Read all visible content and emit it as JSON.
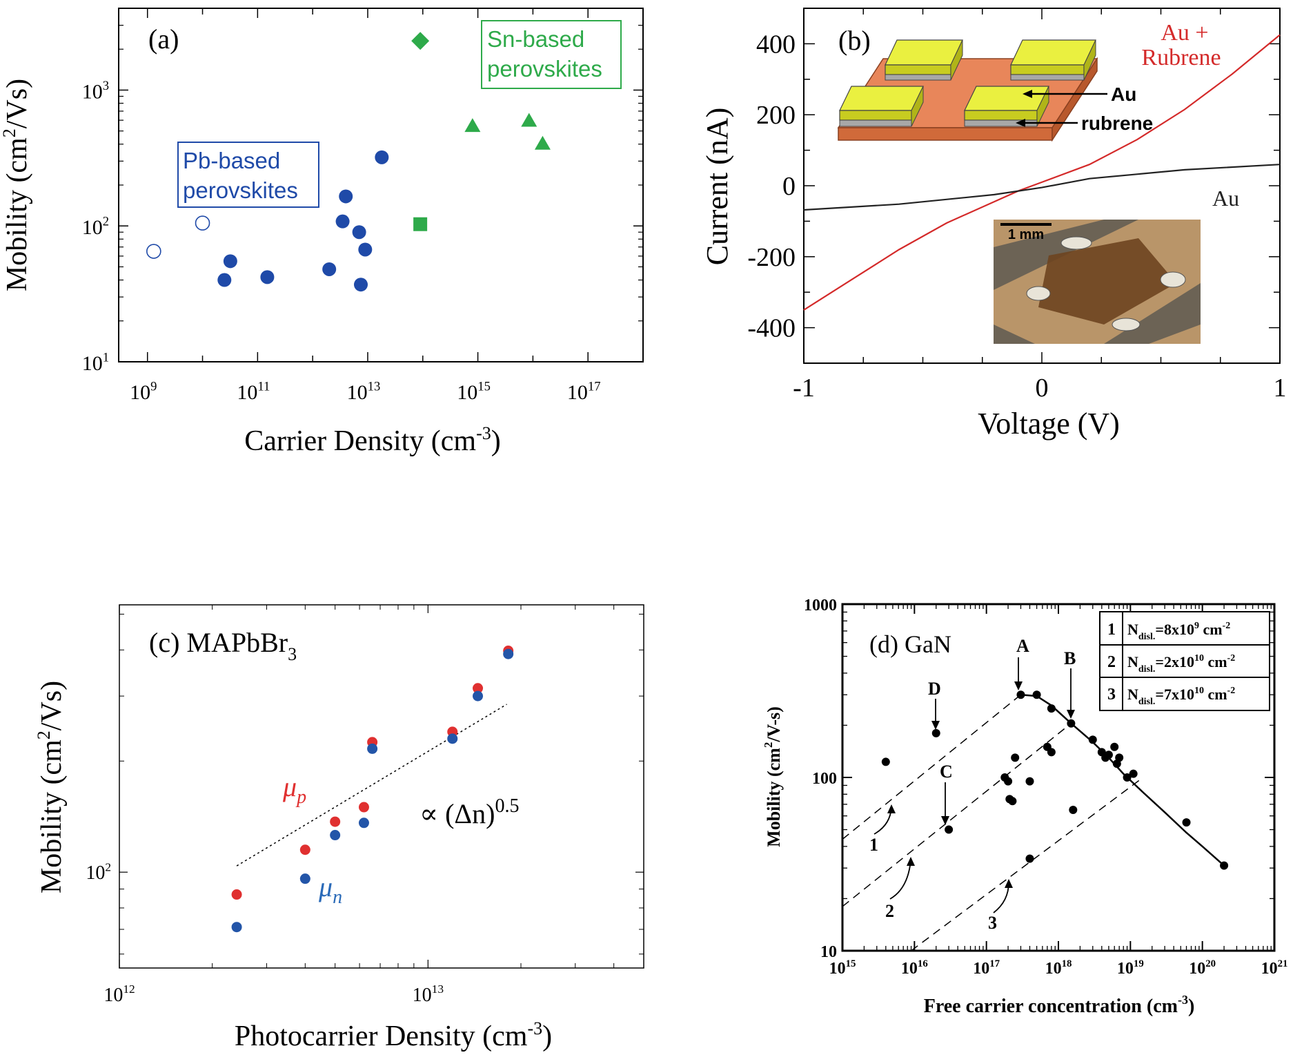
{
  "chart_data": [
    {
      "panel": "(a)",
      "type": "scatter",
      "title": "",
      "xlabel": "Carrier Density (cm",
      "xlabel_sup": "-3",
      "xlabel_end": ")",
      "ylabel": "Mobility (cm",
      "ylabel_sup": "2",
      "ylabel_end": "/Vs)",
      "xscale": "log",
      "yscale": "log",
      "xlim": [
        300000000.0,
        1e+18
      ],
      "ylim": [
        10,
        4000
      ],
      "xticks": [
        {
          "b": "10",
          "e": "9",
          "v": 1000000000.0
        },
        {
          "b": "10",
          "e": "11",
          "v": 100000000000.0
        },
        {
          "b": "10",
          "e": "13",
          "v": 10000000000000.0
        },
        {
          "b": "10",
          "e": "15",
          "v": 1000000000000000.0
        },
        {
          "b": "10",
          "e": "17",
          "v": 1e+17
        }
      ],
      "yticks": [
        {
          "b": "10",
          "e": "1",
          "v": 10
        },
        {
          "b": "10",
          "e": "2",
          "v": 100
        },
        {
          "b": "10",
          "e": "3",
          "v": 1000
        }
      ],
      "annotations": {
        "pb_line1": "Pb-based",
        "pb_line2": "perovskites",
        "sn_line1": "Sn-based",
        "sn_line2": "perovskites"
      },
      "series": [
        {
          "name": "Pb-based (open)",
          "color": "#1f4aa8",
          "marker": "open-circle",
          "points": [
            [
              1300000000.0,
              65
            ],
            [
              10000000000.0,
              105
            ]
          ]
        },
        {
          "name": "Pb-based (filled)",
          "color": "#1f4aa8",
          "marker": "circle",
          "points": [
            [
              25000000000.0,
              40
            ],
            [
              32000000000.0,
              55
            ],
            [
              150000000000.0,
              42
            ],
            [
              2000000000000.0,
              48
            ],
            [
              3500000000000.0,
              108
            ],
            [
              4000000000000.0,
              165
            ],
            [
              7000000000000.0,
              90
            ],
            [
              7500000000000.0,
              37
            ],
            [
              9000000000000.0,
              67
            ],
            [
              18000000000000.0,
              320
            ]
          ]
        },
        {
          "name": "Sn-based diamond",
          "color": "#2eaa4a",
          "marker": "diamond",
          "points": [
            [
              90000000000000.0,
              2300
            ]
          ]
        },
        {
          "name": "Sn-based square",
          "color": "#2eaa4a",
          "marker": "square",
          "points": [
            [
              90000000000000.0,
              103
            ]
          ]
        },
        {
          "name": "Sn-based triangle",
          "color": "#2eaa4a",
          "marker": "triangle",
          "points": [
            [
              800000000000000.0,
              540
            ],
            [
              8500000000000000.0,
              590
            ],
            [
              1.5e+16,
              400
            ]
          ]
        }
      ]
    },
    {
      "panel": "(b)",
      "type": "line",
      "xlabel": "Voltage (V)",
      "ylabel": "Current (nA)",
      "xlim": [
        -1,
        1
      ],
      "ylim": [
        -500,
        500
      ],
      "xticks": [
        {
          "l": "-1",
          "v": -1
        },
        {
          "l": "0",
          "v": 0
        },
        {
          "l": "1",
          "v": 1
        }
      ],
      "yticks": [
        {
          "l": "400",
          "v": 400
        },
        {
          "l": "200",
          "v": 200
        },
        {
          "l": "0",
          "v": 0
        },
        {
          "l": "-200",
          "v": -200
        },
        {
          "l": "-400",
          "v": -400
        }
      ],
      "legend": {
        "au_rubrene_1": "Au +",
        "au_rubrene_2": "Rubrene",
        "au": "Au"
      },
      "inset_labels": {
        "au": "Au",
        "rubrene": "rubrene",
        "scale": "1 mm"
      },
      "series": [
        {
          "name": "Au + Rubrene",
          "color": "#d42a2a",
          "x": [
            -1,
            -0.8,
            -0.6,
            -0.4,
            -0.2,
            -0.1,
            0,
            0.2,
            0.4,
            0.6,
            0.8,
            1
          ],
          "y": [
            -350,
            -265,
            -180,
            -105,
            -45,
            -15,
            10,
            60,
            130,
            215,
            315,
            425
          ]
        },
        {
          "name": "Au",
          "color": "#222222",
          "x": [
            -1,
            -0.6,
            -0.2,
            0,
            0.2,
            0.6,
            1
          ],
          "y": [
            -68,
            -52,
            -25,
            -5,
            20,
            45,
            60
          ]
        }
      ]
    },
    {
      "panel": "(c)",
      "type": "scatter",
      "title_main": "(c) MAPbBr",
      "title_sub": "3",
      "xlabel": "Photocarrier Density (cm",
      "xlabel_sup": "-3",
      "xlabel_end": ")",
      "ylabel": "Mobility (cm",
      "ylabel_sup": "2",
      "ylabel_end": "/Vs)",
      "xscale": "log",
      "yscale": "log",
      "xlim": [
        1000000000000.0,
        50000000000000.0
      ],
      "ylim": [
        55,
        530
      ],
      "xticks": [
        {
          "b": "10",
          "e": "12",
          "v": 1000000000000.0
        },
        {
          "b": "10",
          "e": "13",
          "v": 10000000000000.0
        }
      ],
      "yticks": [
        {
          "b": "10",
          "e": "2",
          "v": 100
        }
      ],
      "labels": {
        "mu_p": "μ",
        "mu_p_sub": "p",
        "mu_n": "μ",
        "mu_n_sub": "n",
        "fit": "∝ (Δn)",
        "fit_sup": "0.5"
      },
      "fit_line": {
        "x": [
          2400000000000.0,
          18000000000000.0
        ],
        "y": [
          104,
          285
        ]
      },
      "series": [
        {
          "name": "μp",
          "color": "#e03030",
          "points": [
            [
              2400000000000.0,
              87
            ],
            [
              4000000000000.0,
              115
            ],
            [
              5000000000000.0,
              137
            ],
            [
              6200000000000.0,
              150
            ],
            [
              6600000000000.0,
              225
            ],
            [
              12000000000000.0,
              240
            ],
            [
              14500000000000.0,
              315
            ],
            [
              18200000000000.0,
              398
            ]
          ]
        },
        {
          "name": "μn",
          "color": "#2355a8",
          "points": [
            [
              2400000000000.0,
              71
            ],
            [
              4000000000000.0,
              96
            ],
            [
              5000000000000.0,
              126
            ],
            [
              6200000000000.0,
              136
            ],
            [
              6600000000000.0,
              216
            ],
            [
              12000000000000.0,
              230
            ],
            [
              14500000000000.0,
              300
            ],
            [
              18200000000000.0,
              390
            ]
          ]
        }
      ]
    },
    {
      "panel": "(d)",
      "type": "scatter",
      "title": "(d) GaN",
      "xlabel": "Free carrier concentration (cm",
      "xlabel_sup": "-3",
      "xlabel_end": ")",
      "ylabel": "Mobility (cm",
      "ylabel_sup": "2",
      "ylabel_end": "/V-s)",
      "xscale": "log",
      "yscale": "log",
      "xlim": [
        1000000000000000.0,
        1e+21
      ],
      "ylim": [
        10,
        1000
      ],
      "xticks": [
        {
          "b": "10",
          "e": "15",
          "v": 1000000000000000.0
        },
        {
          "b": "10",
          "e": "16",
          "v": 1e+16
        },
        {
          "b": "10",
          "e": "17",
          "v": 1e+17
        },
        {
          "b": "10",
          "e": "18",
          "v": 1e+18
        },
        {
          "b": "10",
          "e": "19",
          "v": 1e+19
        },
        {
          "b": "10",
          "e": "20",
          "v": 1e+20
        },
        {
          "b": "10",
          "e": "21",
          "v": 1e+21
        }
      ],
      "yticks": [
        {
          "l": "10",
          "v": 10
        },
        {
          "l": "100",
          "v": 100
        },
        {
          "l": "1000",
          "v": 1000
        }
      ],
      "legend": [
        {
          "num": "1",
          "pre": "N",
          "sub": "disl.",
          "val": "=8x10",
          "exp": "9",
          "unit": " cm",
          "uexp": "-2"
        },
        {
          "num": "2",
          "pre": "N",
          "sub": "disl.",
          "val": "=2x10",
          "exp": "10",
          "unit": " cm",
          "uexp": "-2"
        },
        {
          "num": "3",
          "pre": "N",
          "sub": "disl.",
          "val": "=7x10",
          "exp": "10",
          "unit": " cm",
          "uexp": "-2"
        }
      ],
      "point_labels": {
        "A": "A",
        "B": "B",
        "C": "C",
        "D": "D",
        "n1": "1",
        "n2": "2",
        "n3": "3"
      },
      "solid_curve": {
        "x": [
          3e+17,
          5e+17,
          8e+17,
          1.5e+18,
          3e+18,
          5e+18,
          8e+18,
          1.5e+19,
          3e+19,
          6e+19,
          1e+20,
          2e+20
        ],
        "y": [
          300,
          295,
          260,
          205,
          160,
          130,
          105,
          82,
          63,
          48,
          40,
          31
        ]
      },
      "dashed_lines": [
        {
          "name": "1",
          "x": [
            1000000000000000.0,
            3e+17
          ],
          "y": [
            44,
            300
          ]
        },
        {
          "name": "2",
          "x": [
            1000000000000000.0,
            1.5e+18
          ],
          "y": [
            18,
            205
          ]
        },
        {
          "name": "3",
          "x": [
            9000000000000000.0,
            1.5e+19
          ],
          "y": [
            10,
            100
          ]
        }
      ],
      "points": [
        [
          4000000000000000.0,
          123
        ],
        [
          2e+16,
          180
        ],
        [
          3e+16,
          50
        ],
        [
          2.5e+17,
          130
        ],
        [
          1.8e+17,
          100
        ],
        [
          2e+17,
          95
        ],
        [
          2.1e+17,
          75
        ],
        [
          2.3e+17,
          73
        ],
        [
          4e+17,
          95
        ],
        [
          3e+17,
          300
        ],
        [
          5e+17,
          300
        ],
        [
          7e+17,
          150
        ],
        [
          8e+17,
          140
        ],
        [
          8e+17,
          250
        ],
        [
          1.5e+18,
          205
        ],
        [
          1.6e+18,
          65
        ],
        [
          3e+18,
          165
        ],
        [
          4e+18,
          140
        ],
        [
          4.5e+18,
          130
        ],
        [
          5e+18,
          135
        ],
        [
          6e+18,
          150
        ],
        [
          6.5e+18,
          120
        ],
        [
          7e+18,
          130
        ],
        [
          9e+18,
          100
        ],
        [
          1.1e+19,
          105
        ],
        [
          6e+19,
          55
        ],
        [
          2e+20,
          31
        ],
        [
          4e+17,
          34
        ]
      ]
    }
  ]
}
